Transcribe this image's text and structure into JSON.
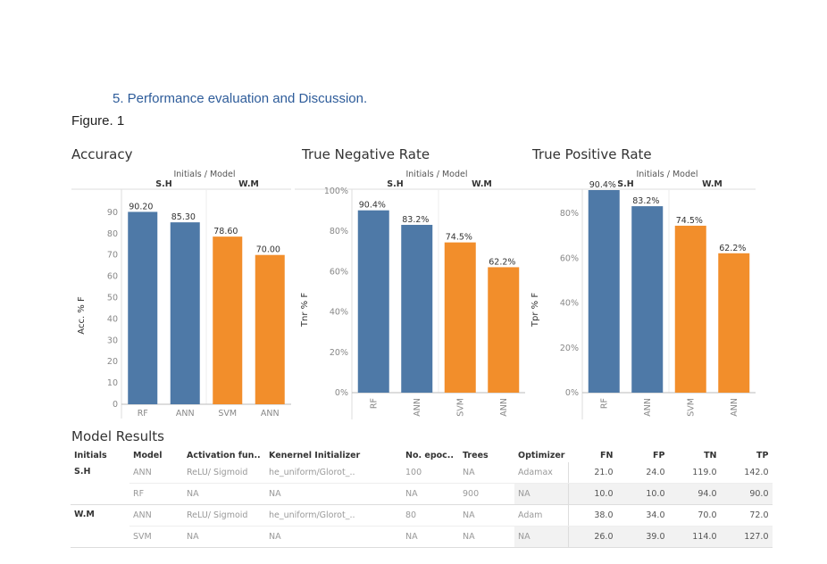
{
  "heading": "5.   Performance evaluation and Discussion.",
  "figure_label": "Figure. 1",
  "colors": {
    "blue": "#4e79a7",
    "orange": "#f28e2b"
  },
  "chart_data": [
    {
      "type": "bar",
      "title": "Accuracy",
      "header_title": "Initials / Model",
      "groups": [
        "S.H",
        "W.M"
      ],
      "categories": [
        "RF",
        "ANN",
        "SVM",
        "ANN"
      ],
      "group_of_category": [
        "S.H",
        "S.H",
        "W.M",
        "W.M"
      ],
      "values": [
        90.2,
        85.3,
        78.6,
        70.0
      ],
      "value_labels": [
        "90.20",
        "85.30",
        "78.60",
        "70.00"
      ],
      "ylabel": "Acc. % F",
      "ylim": [
        0,
        100
      ],
      "yticks": [
        0,
        10,
        20,
        30,
        40,
        50,
        60,
        70,
        80,
        90
      ],
      "ytick_labels": [
        "0",
        "10",
        "20",
        "30",
        "40",
        "50",
        "60",
        "70",
        "80",
        "90"
      ],
      "xlabel_rotated": false
    },
    {
      "type": "bar",
      "title": "True Negative Rate",
      "header_title": "Initials / Model",
      "groups": [
        "S.H",
        "W.M"
      ],
      "categories": [
        "RF",
        "ANN",
        "SVM",
        "ANN"
      ],
      "group_of_category": [
        "S.H",
        "S.H",
        "W.M",
        "W.M"
      ],
      "values": [
        90.4,
        83.2,
        74.5,
        62.2
      ],
      "value_labels": [
        "90.4%",
        "83.2%",
        "74.5%",
        "62.2%"
      ],
      "ylabel": "Tnr % F",
      "ylim": [
        0,
        100
      ],
      "yticks": [
        0,
        20,
        40,
        60,
        80,
        100
      ],
      "ytick_labels": [
        "0%",
        "20%",
        "40%",
        "60%",
        "80%",
        "100%"
      ],
      "xlabel_rotated": true
    },
    {
      "type": "bar",
      "title": "True Positive Rate",
      "header_title": "Initials / Model",
      "groups": [
        "S.H",
        "W.M"
      ],
      "categories": [
        "RF",
        "ANN",
        "SVM",
        "ANN"
      ],
      "group_of_category": [
        "S.H",
        "S.H",
        "W.M",
        "W.M"
      ],
      "values": [
        90.4,
        83.2,
        74.5,
        62.2
      ],
      "value_labels": [
        "90.4%",
        "83.2%",
        "74.5%",
        "62.2%"
      ],
      "ylabel": "Tpr % F",
      "ylim": [
        0,
        90
      ],
      "yticks": [
        0,
        20,
        40,
        60,
        80
      ],
      "ytick_labels": [
        "0%",
        "20%",
        "40%",
        "60%",
        "80%"
      ],
      "xlabel_rotated": true
    }
  ],
  "results": {
    "title": "Model Results",
    "columns": [
      "Initials",
      "Model",
      "Activation fun..",
      "Kenernel Initializer",
      "No. epoc..",
      "Trees",
      "Optimizer",
      "FN",
      "FP",
      "TN",
      "TP"
    ],
    "rows": [
      {
        "initials": "S.H",
        "model": "ANN",
        "activation": "ReLU/ Sigmoid",
        "initializer": "he_uniform/Glorot_..",
        "epochs": "100",
        "trees": "NA",
        "optimizer": "Adamax",
        "fn": "21.0",
        "fp": "24.0",
        "tn": "119.0",
        "tp": "142.0"
      },
      {
        "initials": "",
        "model": "RF",
        "activation": "NA",
        "initializer": "NA",
        "epochs": "NA",
        "trees": "900",
        "optimizer": "NA",
        "fn": "10.0",
        "fp": "10.0",
        "tn": "94.0",
        "tp": "90.0"
      },
      {
        "initials": "W.M",
        "model": "ANN",
        "activation": "ReLU/ Sigmoid",
        "initializer": "he_uniform/Glorot_..",
        "epochs": "80",
        "trees": "NA",
        "optimizer": "Adam",
        "fn": "38.0",
        "fp": "34.0",
        "tn": "70.0",
        "tp": "72.0"
      },
      {
        "initials": "",
        "model": "SVM",
        "activation": "NA",
        "initializer": "NA",
        "epochs": "NA",
        "trees": "NA",
        "optimizer": "NA",
        "fn": "26.0",
        "fp": "39.0",
        "tn": "114.0",
        "tp": "127.0"
      }
    ]
  }
}
